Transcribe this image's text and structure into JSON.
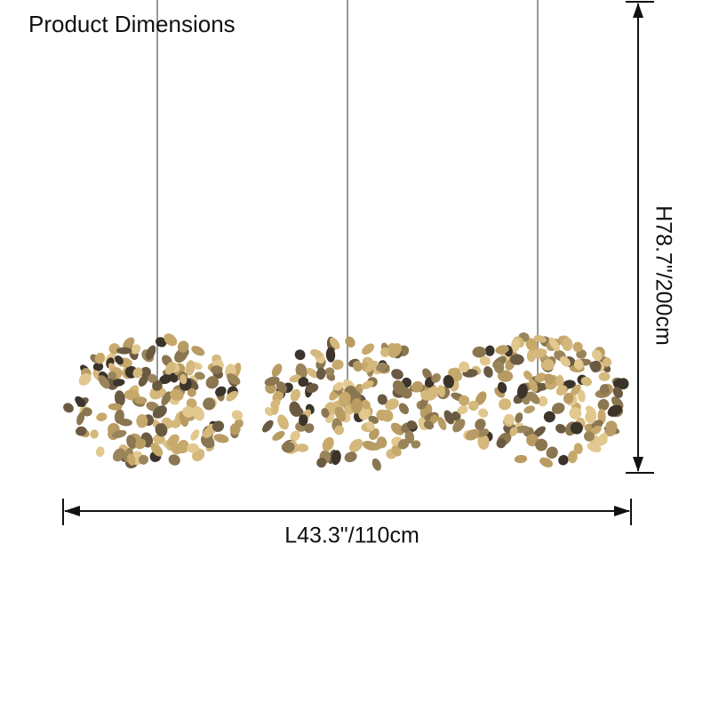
{
  "header": {
    "title": "Product Dimensions"
  },
  "dimensions": {
    "length": "L43.3\"/110cm",
    "height": "H78.7\"/200cm"
  }
}
